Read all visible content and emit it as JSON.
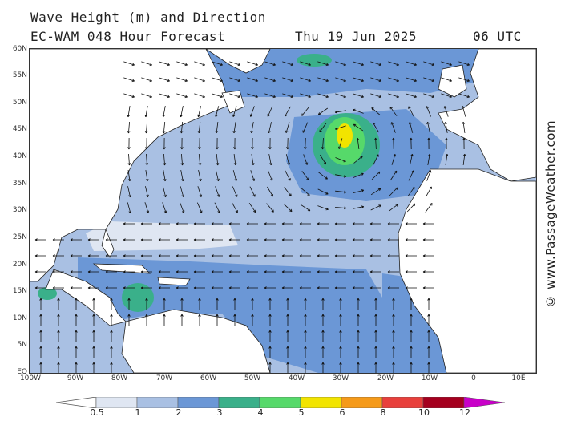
{
  "title": "Wave Height (m) and Direction",
  "subtitle": {
    "model": "EC-WAM 048 Hour Forecast",
    "date": "Thu 19 Jun 2025",
    "time": "06 UTC"
  },
  "credit": "© www.PassageWeather.com",
  "axes": {
    "lat_labels": [
      "60N",
      "55N",
      "50N",
      "45N",
      "40N",
      "35N",
      "30N",
      "25N",
      "20N",
      "15N",
      "10N",
      "5N",
      "EQ"
    ],
    "lon_labels": [
      "100W",
      "90W",
      "80W",
      "70W",
      "60W",
      "50W",
      "40W",
      "30W",
      "20W",
      "10W",
      "0",
      "10E"
    ]
  },
  "legend": {
    "levels": [
      "0.5",
      "1",
      "2",
      "3",
      "4",
      "5",
      "6",
      "8",
      "10",
      "12"
    ],
    "colors": [
      "#dfe6f2",
      "#a9c0e3",
      "#6b97d6",
      "#3ab08a",
      "#56d96a",
      "#f2e400",
      "#f59a1a",
      "#e8403c",
      "#a5001f",
      "#c800c8"
    ]
  },
  "colors": {
    "land": "#ffffff",
    "water_calm": "#dfe6f2",
    "water_1m": "#a9c0e3",
    "water_2m": "#6b97d6",
    "arrow": "#111111"
  }
}
